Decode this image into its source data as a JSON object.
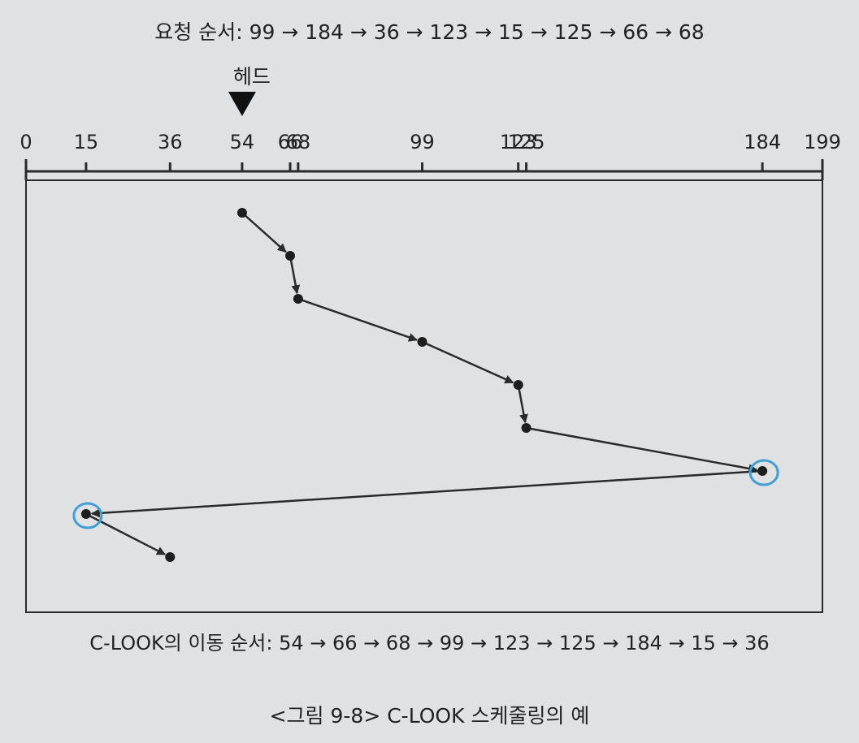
{
  "request_order": "요청 순서: 99 → 184 → 36 → 123 → 15 → 125 → 66 → 68",
  "head_label": "헤드",
  "head_position": 54,
  "axis": {
    "min": 0,
    "max": 199,
    "ticks": [
      {
        "value": 0,
        "label": "0"
      },
      {
        "value": 15,
        "label": "15"
      },
      {
        "value": 36,
        "label": "36"
      },
      {
        "value": 54,
        "label": "54"
      },
      {
        "value": 66,
        "label": "66"
      },
      {
        "value": 68,
        "label": "68"
      },
      {
        "value": 99,
        "label": "99"
      },
      {
        "value": 123,
        "label": "123"
      },
      {
        "value": 125,
        "label": "125"
      },
      {
        "value": 184,
        "label": "184"
      },
      {
        "value": 199,
        "label": "199"
      }
    ]
  },
  "move_sequence": [
    54,
    66,
    68,
    99,
    123,
    125,
    184,
    15,
    36
  ],
  "circled_points": [
    184,
    15
  ],
  "move_order_text": "C-LOOK의 이동 순서: 54 → 66 → 68 → 99 → 123 → 125 → 184 → 15 → 36",
  "figure_caption": "<그림 9-8> C-LOOK 스케줄링의 예",
  "colors": {
    "background": "#dfe1e3",
    "line": "#2a2a2a",
    "circle_highlight": "#3f9fd4"
  }
}
